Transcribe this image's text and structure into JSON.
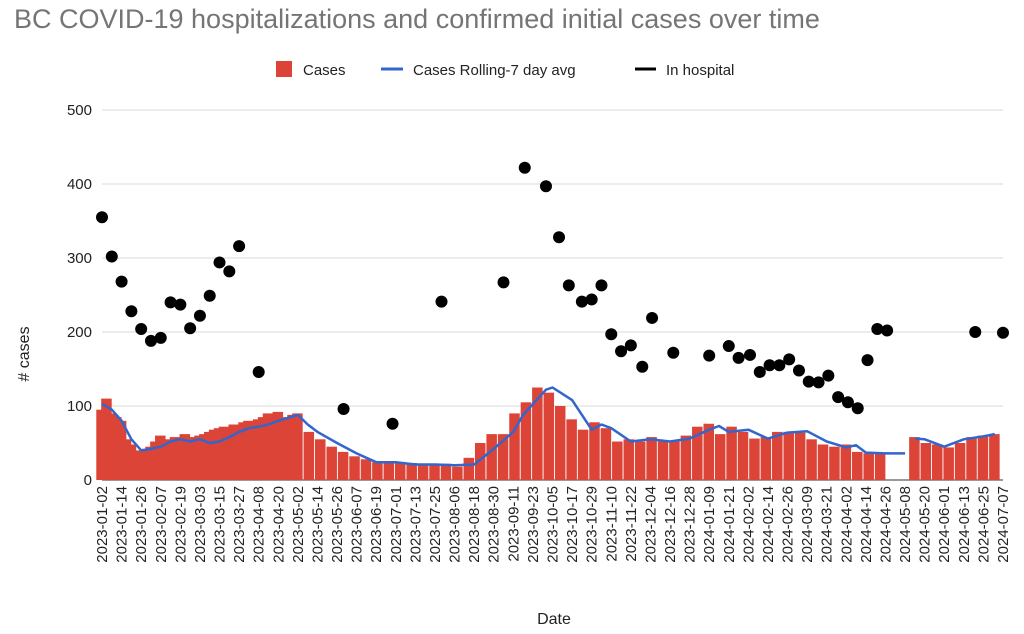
{
  "chart_data": {
    "type": "bar+line+scatter",
    "title": "BC COVID-19 hospitalizations and confirmed initial cases over time",
    "xlabel": "Date",
    "ylabel": "# cases",
    "ylim": [
      0,
      500
    ],
    "yticks": [
      0,
      100,
      200,
      300,
      400,
      500
    ],
    "grid": true,
    "legend_position": "top",
    "x_start": "2023-01-02",
    "x_end": "2024-07-07",
    "xticks": [
      "2023-01-02",
      "2023-01-14",
      "2023-01-26",
      "2023-02-07",
      "2023-02-19",
      "2023-03-03",
      "2023-03-15",
      "2023-03-27",
      "2023-04-08",
      "2023-04-20",
      "2023-05-02",
      "2023-05-14",
      "2023-05-26",
      "2023-06-07",
      "2023-06-19",
      "2023-07-01",
      "2023-07-13",
      "2023-07-25",
      "2023-08-06",
      "2023-08-18",
      "2023-08-30",
      "2023-09-11",
      "2023-09-23",
      "2023-10-05",
      "2023-10-17",
      "2023-10-29",
      "2023-11-10",
      "2023-11-22",
      "2023-12-04",
      "2023-12-16",
      "2023-12-28",
      "2024-01-09",
      "2024-01-21",
      "2024-02-02",
      "2024-02-14",
      "2024-02-26",
      "2024-03-09",
      "2024-03-21",
      "2024-04-02",
      "2024-04-14",
      "2024-04-26",
      "2024-05-08",
      "2024-05-20",
      "2024-06-01",
      "2024-06-13",
      "2024-06-25",
      "2024-07-07"
    ],
    "series": [
      {
        "name": "Cases",
        "kind": "bar",
        "color": "#db4437",
        "x": [
          "2023-01-02",
          "2023-01-05",
          "2023-01-08",
          "2023-01-11",
          "2023-01-14",
          "2023-01-17",
          "2023-01-20",
          "2023-01-23",
          "2023-01-26",
          "2023-01-29",
          "2023-02-01",
          "2023-02-04",
          "2023-02-07",
          "2023-02-10",
          "2023-02-13",
          "2023-02-16",
          "2023-02-19",
          "2023-02-22",
          "2023-02-25",
          "2023-02-28",
          "2023-03-03",
          "2023-03-06",
          "2023-03-09",
          "2023-03-12",
          "2023-03-15",
          "2023-03-18",
          "2023-03-21",
          "2023-03-24",
          "2023-03-27",
          "2023-03-30",
          "2023-04-02",
          "2023-04-05",
          "2023-04-08",
          "2023-04-11",
          "2023-04-14",
          "2023-04-17",
          "2023-04-20",
          "2023-04-23",
          "2023-04-26",
          "2023-04-29",
          "2023-05-02",
          "2023-05-09",
          "2023-05-16",
          "2023-05-23",
          "2023-05-30",
          "2023-06-06",
          "2023-06-13",
          "2023-06-20",
          "2023-06-27",
          "2023-07-04",
          "2023-07-11",
          "2023-07-18",
          "2023-07-25",
          "2023-08-01",
          "2023-08-08",
          "2023-08-15",
          "2023-08-22",
          "2023-08-29",
          "2023-09-05",
          "2023-09-12",
          "2023-09-19",
          "2023-09-26",
          "2023-10-03",
          "2023-10-10",
          "2023-10-17",
          "2023-10-24",
          "2023-10-31",
          "2023-11-07",
          "2023-11-14",
          "2023-11-21",
          "2023-11-28",
          "2023-12-05",
          "2023-12-12",
          "2023-12-19",
          "2023-12-26",
          "2024-01-02",
          "2024-01-09",
          "2024-01-16",
          "2024-01-23",
          "2024-01-30",
          "2024-02-06",
          "2024-02-13",
          "2024-02-20",
          "2024-02-27",
          "2024-03-05",
          "2024-03-12",
          "2024-03-19",
          "2024-03-26",
          "2024-04-02",
          "2024-04-09",
          "2024-04-16",
          "2024-04-23",
          "2024-04-30",
          "2024-05-14",
          "2024-05-21",
          "2024-05-28",
          "2024-06-04",
          "2024-06-11",
          "2024-06-18",
          "2024-06-25",
          "2024-07-02"
        ],
        "values": [
          95,
          110,
          90,
          85,
          80,
          55,
          48,
          40,
          38,
          42,
          45,
          52,
          60,
          50,
          55,
          58,
          45,
          62,
          55,
          58,
          60,
          62,
          65,
          68,
          70,
          72,
          68,
          75,
          72,
          78,
          80,
          75,
          82,
          85,
          90,
          88,
          92,
          80,
          85,
          88,
          90,
          65,
          55,
          45,
          38,
          32,
          28,
          24,
          23,
          24,
          23,
          20,
          21,
          22,
          18,
          30,
          50,
          62,
          62,
          90,
          105,
          125,
          118,
          100,
          82,
          68,
          78,
          70,
          52,
          55,
          52,
          58,
          52,
          52,
          60,
          72,
          76,
          62,
          72,
          65,
          56,
          58,
          65,
          65,
          64,
          55,
          48,
          45,
          48,
          38,
          36,
          36,
          0,
          58,
          50,
          48,
          44,
          50,
          58,
          60,
          62
        ]
      },
      {
        "name": "Cases Rolling-7 day avg",
        "kind": "line",
        "color": "#3366cc",
        "segments": [
          {
            "x": [
              "2023-01-02",
              "2023-01-08",
              "2023-01-14",
              "2023-01-20",
              "2023-01-26",
              "2023-02-01",
              "2023-02-07",
              "2023-02-13",
              "2023-02-19",
              "2023-02-25",
              "2023-03-03",
              "2023-03-09",
              "2023-03-15",
              "2023-03-21",
              "2023-03-27",
              "2023-04-02",
              "2023-04-08",
              "2023-04-14",
              "2023-04-20",
              "2023-04-26",
              "2023-05-02",
              "2023-05-08",
              "2023-05-14",
              "2023-05-26",
              "2023-06-07",
              "2023-06-19",
              "2023-07-01",
              "2023-07-13",
              "2023-07-25",
              "2023-08-06",
              "2023-08-18",
              "2023-08-30",
              "2023-09-11",
              "2023-09-17",
              "2023-10-01",
              "2023-10-05",
              "2023-10-17",
              "2023-10-29",
              "2023-11-04",
              "2023-11-10",
              "2023-11-22",
              "2023-12-04",
              "2023-12-16",
              "2023-12-28",
              "2024-01-09",
              "2024-01-15",
              "2024-01-21",
              "2024-02-02",
              "2024-02-14",
              "2024-02-26",
              "2024-03-09",
              "2024-03-21",
              "2024-04-02",
              "2024-04-08",
              "2024-04-14",
              "2024-04-26",
              "2024-05-08"
            ],
            "values": [
              103,
              95,
              80,
              55,
              40,
              42,
              45,
              52,
              55,
              52,
              55,
              50,
              52,
              58,
              65,
              70,
              72,
              75,
              80,
              84,
              88,
              75,
              65,
              50,
              36,
              24,
              24,
              21,
              21,
              20,
              21,
              42,
              65,
              88,
              122,
              125,
              108,
              68,
              75,
              70,
              52,
              55,
              52,
              56,
              68,
              73,
              65,
              68,
              56,
              64,
              66,
              52,
              44,
              47,
              37,
              36,
              36
            ]
          },
          {
            "x": [
              "2024-05-14",
              "2024-05-20",
              "2024-06-01",
              "2024-06-13",
              "2024-06-25",
              "2024-07-02"
            ],
            "values": [
              56,
              55,
              45,
              55,
              59,
              62
            ]
          }
        ]
      },
      {
        "name": "In hospital",
        "kind": "scatter",
        "color": "#000000",
        "x": [
          "2023-01-02",
          "2023-01-08",
          "2023-01-14",
          "2023-01-20",
          "2023-01-26",
          "2023-02-01",
          "2023-02-07",
          "2023-02-13",
          "2023-02-19",
          "2023-02-25",
          "2023-03-03",
          "2023-03-09",
          "2023-03-15",
          "2023-03-21",
          "2023-03-27",
          "2023-04-08",
          "2023-05-30",
          "2023-06-29",
          "2023-07-29",
          "2023-09-05",
          "2023-09-18",
          "2023-10-01",
          "2023-10-09",
          "2023-10-15",
          "2023-10-23",
          "2023-10-29",
          "2023-11-04",
          "2023-11-10",
          "2023-11-16",
          "2023-11-22",
          "2023-11-29",
          "2023-12-05",
          "2023-12-18",
          "2024-01-09",
          "2024-01-21",
          "2024-01-27",
          "2024-02-03",
          "2024-02-09",
          "2024-02-15",
          "2024-02-21",
          "2024-02-27",
          "2024-03-04",
          "2024-03-10",
          "2024-03-16",
          "2024-03-22",
          "2024-03-28",
          "2024-04-03",
          "2024-04-09",
          "2024-04-15",
          "2024-04-21",
          "2024-04-27",
          "2024-06-20",
          "2024-07-07"
        ],
        "values": [
          355,
          302,
          268,
          228,
          204,
          188,
          192,
          240,
          237,
          205,
          222,
          249,
          294,
          282,
          316,
          146,
          96,
          76,
          241,
          267,
          422,
          397,
          328,
          263,
          241,
          244,
          263,
          197,
          174,
          182,
          153,
          219,
          172,
          168,
          181,
          165,
          169,
          146,
          155,
          155,
          163,
          148,
          133,
          132,
          141,
          112,
          105,
          97,
          162,
          204,
          202,
          200,
          199
        ]
      }
    ]
  }
}
